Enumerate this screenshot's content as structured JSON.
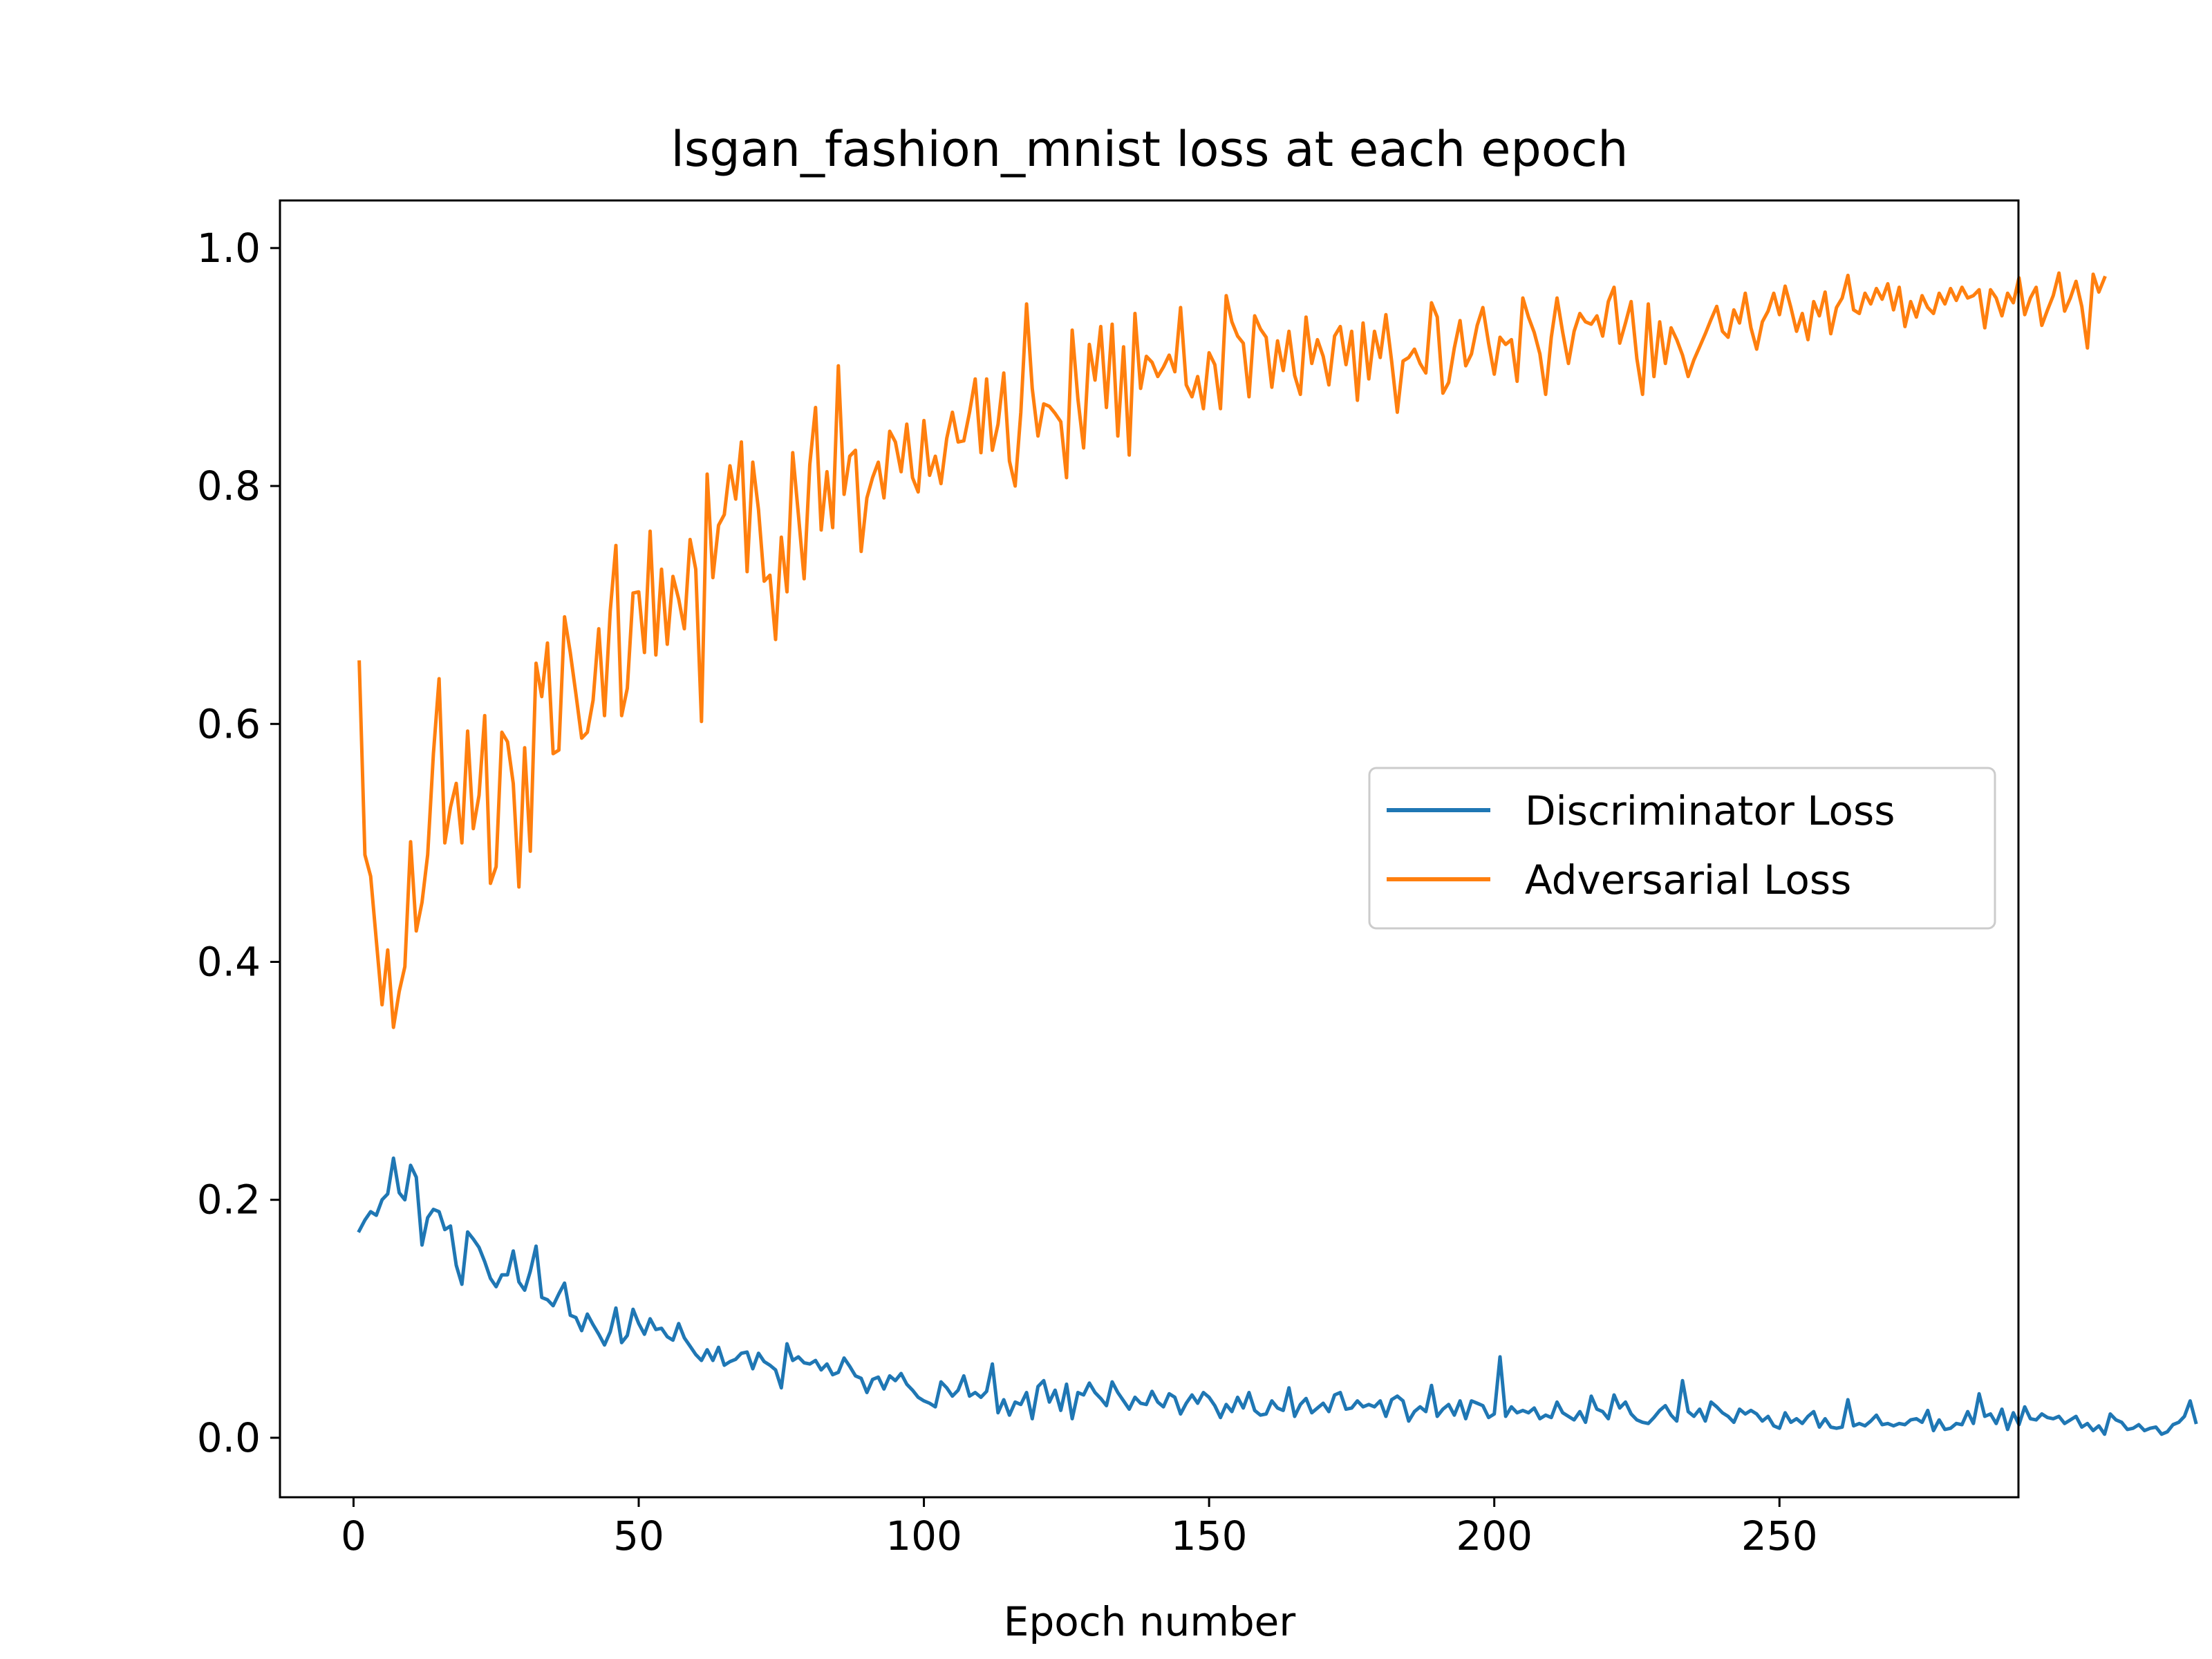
{
  "chart_data": {
    "type": "line",
    "title": "lsgan_fashion_mnist loss at each epoch",
    "xlabel": "Epoch number",
    "ylabel": "",
    "xlim": [
      -12.9,
      291.9
    ],
    "ylim": [
      -0.05,
      1.04
    ],
    "x_ticks": [
      0,
      50,
      100,
      150,
      200,
      250
    ],
    "y_ticks": [
      0.0,
      0.2,
      0.4,
      0.6,
      0.8,
      1.0
    ],
    "y_tick_labels": [
      "0.0",
      "0.2",
      "0.4",
      "0.6",
      "0.8",
      "1.0"
    ],
    "grid": false,
    "legend_position": "center-right",
    "x_start": 1,
    "series": [
      {
        "name": "Discriminator Loss",
        "color": "#1f77b4",
        "values": [
          0.174,
          0.183,
          0.19,
          0.187,
          0.2,
          0.205,
          0.235,
          0.206,
          0.2,
          0.229,
          0.219,
          0.162,
          0.185,
          0.192,
          0.19,
          0.175,
          0.178,
          0.145,
          0.129,
          0.173,
          0.167,
          0.16,
          0.148,
          0.134,
          0.127,
          0.137,
          0.137,
          0.157,
          0.131,
          0.124,
          0.14,
          0.161,
          0.118,
          0.116,
          0.111,
          0.121,
          0.13,
          0.103,
          0.101,
          0.09,
          0.104,
          0.095,
          0.087,
          0.078,
          0.089,
          0.109,
          0.08,
          0.086,
          0.108,
          0.096,
          0.087,
          0.1,
          0.091,
          0.092,
          0.085,
          0.082,
          0.096,
          0.084,
          0.077,
          0.07,
          0.065,
          0.074,
          0.065,
          0.076,
          0.061,
          0.064,
          0.066,
          0.071,
          0.072,
          0.058,
          0.071,
          0.064,
          0.061,
          0.057,
          0.042,
          0.079,
          0.065,
          0.068,
          0.063,
          0.062,
          0.065,
          0.057,
          0.062,
          0.053,
          0.055,
          0.067,
          0.06,
          0.052,
          0.05,
          0.038,
          0.049,
          0.051,
          0.041,
          0.052,
          0.048,
          0.054,
          0.045,
          0.04,
          0.034,
          0.031,
          0.029,
          0.026,
          0.047,
          0.042,
          0.035,
          0.04,
          0.052,
          0.035,
          0.038,
          0.034,
          0.039,
          0.062,
          0.021,
          0.032,
          0.019,
          0.03,
          0.028,
          0.038,
          0.016,
          0.043,
          0.048,
          0.03,
          0.04,
          0.023,
          0.045,
          0.016,
          0.038,
          0.036,
          0.046,
          0.038,
          0.033,
          0.027,
          0.047,
          0.038,
          0.031,
          0.024,
          0.034,
          0.029,
          0.028,
          0.039,
          0.03,
          0.026,
          0.037,
          0.034,
          0.02,
          0.029,
          0.036,
          0.029,
          0.038,
          0.034,
          0.027,
          0.017,
          0.028,
          0.022,
          0.034,
          0.025,
          0.038,
          0.023,
          0.019,
          0.02,
          0.031,
          0.025,
          0.023,
          0.042,
          0.018,
          0.028,
          0.033,
          0.021,
          0.025,
          0.029,
          0.022,
          0.036,
          0.038,
          0.024,
          0.025,
          0.031,
          0.026,
          0.028,
          0.026,
          0.031,
          0.018,
          0.032,
          0.035,
          0.031,
          0.014,
          0.022,
          0.026,
          0.022,
          0.044,
          0.018,
          0.024,
          0.028,
          0.019,
          0.031,
          0.016,
          0.031,
          0.029,
          0.027,
          0.017,
          0.02,
          0.068,
          0.018,
          0.026,
          0.021,
          0.023,
          0.021,
          0.025,
          0.016,
          0.019,
          0.017,
          0.03,
          0.021,
          0.018,
          0.015,
          0.022,
          0.013,
          0.035,
          0.024,
          0.022,
          0.016,
          0.036,
          0.025,
          0.03,
          0.02,
          0.015,
          0.013,
          0.012,
          0.017,
          0.023,
          0.027,
          0.019,
          0.014,
          0.048,
          0.022,
          0.018,
          0.024,
          0.014,
          0.03,
          0.026,
          0.021,
          0.018,
          0.013,
          0.024,
          0.02,
          0.023,
          0.02,
          0.014,
          0.018,
          0.01,
          0.008,
          0.021,
          0.013,
          0.016,
          0.012,
          0.018,
          0.022,
          0.009,
          0.016,
          0.009,
          0.008,
          0.009,
          0.032,
          0.01,
          0.012,
          0.01,
          0.014,
          0.019,
          0.011,
          0.012,
          0.01,
          0.012,
          0.011,
          0.015,
          0.016,
          0.013,
          0.023,
          0.006,
          0.015,
          0.007,
          0.008,
          0.012,
          0.011,
          0.022,
          0.012,
          0.037,
          0.018,
          0.02,
          0.012,
          0.024,
          0.007,
          0.021,
          0.011,
          0.026,
          0.016,
          0.015,
          0.02,
          0.017,
          0.016,
          0.018,
          0.012,
          0.015,
          0.018,
          0.009,
          0.012,
          0.006,
          0.01,
          0.003,
          0.02,
          0.015,
          0.013,
          0.007,
          0.008,
          0.011,
          0.006,
          0.008,
          0.009,
          0.003,
          0.005,
          0.011,
          0.013,
          0.018,
          0.031,
          0.013
        ]
      },
      {
        "name": "Adversarial Loss",
        "color": "#ff7f0e",
        "values": [
          0.652,
          0.49,
          0.472,
          0.418,
          0.364,
          0.41,
          0.345,
          0.375,
          0.396,
          0.501,
          0.426,
          0.45,
          0.49,
          0.575,
          0.638,
          0.5,
          0.53,
          0.55,
          0.5,
          0.594,
          0.512,
          0.54,
          0.607,
          0.466,
          0.48,
          0.593,
          0.585,
          0.55,
          0.463,
          0.58,
          0.493,
          0.651,
          0.623,
          0.668,
          0.575,
          0.578,
          0.69,
          0.66,
          0.625,
          0.588,
          0.593,
          0.62,
          0.68,
          0.607,
          0.695,
          0.75,
          0.607,
          0.63,
          0.71,
          0.711,
          0.66,
          0.762,
          0.658,
          0.73,
          0.667,
          0.724,
          0.705,
          0.68,
          0.755,
          0.73,
          0.602,
          0.81,
          0.723,
          0.767,
          0.776,
          0.817,
          0.789,
          0.837,
          0.728,
          0.82,
          0.78,
          0.72,
          0.725,
          0.671,
          0.757,
          0.711,
          0.828,
          0.776,
          0.722,
          0.818,
          0.866,
          0.763,
          0.812,
          0.765,
          0.901,
          0.793,
          0.825,
          0.83,
          0.745,
          0.79,
          0.807,
          0.82,
          0.79,
          0.846,
          0.837,
          0.812,
          0.852,
          0.807,
          0.795,
          0.855,
          0.809,
          0.825,
          0.802,
          0.84,
          0.862,
          0.837,
          0.838,
          0.862,
          0.89,
          0.828,
          0.89,
          0.83,
          0.852,
          0.895,
          0.821,
          0.8,
          0.862,
          0.953,
          0.882,
          0.842,
          0.869,
          0.867,
          0.861,
          0.854,
          0.807,
          0.931,
          0.873,
          0.832,
          0.919,
          0.889,
          0.934,
          0.866,
          0.936,
          0.842,
          0.917,
          0.826,
          0.945,
          0.882,
          0.909,
          0.904,
          0.892,
          0.9,
          0.91,
          0.896,
          0.95,
          0.885,
          0.875,
          0.892,
          0.865,
          0.912,
          0.902,
          0.865,
          0.96,
          0.938,
          0.926,
          0.92,
          0.875,
          0.943,
          0.932,
          0.925,
          0.883,
          0.922,
          0.897,
          0.93,
          0.893,
          0.877,
          0.942,
          0.903,
          0.923,
          0.909,
          0.885,
          0.926,
          0.934,
          0.902,
          0.93,
          0.872,
          0.937,
          0.89,
          0.93,
          0.908,
          0.944,
          0.905,
          0.862,
          0.905,
          0.908,
          0.915,
          0.903,
          0.895,
          0.954,
          0.942,
          0.878,
          0.887,
          0.916,
          0.939,
          0.901,
          0.911,
          0.935,
          0.95,
          0.92,
          0.894,
          0.925,
          0.919,
          0.923,
          0.888,
          0.958,
          0.942,
          0.929,
          0.911,
          0.877,
          0.925,
          0.958,
          0.929,
          0.903,
          0.93,
          0.945,
          0.938,
          0.936,
          0.943,
          0.926,
          0.955,
          0.967,
          0.92,
          0.937,
          0.955,
          0.907,
          0.877,
          0.953,
          0.892,
          0.938,
          0.903,
          0.933,
          0.923,
          0.91,
          0.892,
          0.906,
          0.917,
          0.928,
          0.94,
          0.951,
          0.93,
          0.925,
          0.948,
          0.937,
          0.962,
          0.933,
          0.915,
          0.938,
          0.947,
          0.962,
          0.944,
          0.968,
          0.95,
          0.93,
          0.945,
          0.923,
          0.955,
          0.943,
          0.963,
          0.928,
          0.95,
          0.958,
          0.977,
          0.948,
          0.945,
          0.962,
          0.953,
          0.966,
          0.957,
          0.97,
          0.948,
          0.967,
          0.934,
          0.955,
          0.942,
          0.96,
          0.95,
          0.945,
          0.962,
          0.953,
          0.966,
          0.956,
          0.967,
          0.958,
          0.96,
          0.965,
          0.933,
          0.965,
          0.958,
          0.943,
          0.962,
          0.954,
          0.975,
          0.944,
          0.958,
          0.967,
          0.935,
          0.948,
          0.96,
          0.979,
          0.947,
          0.958,
          0.972,
          0.951,
          0.916,
          0.978,
          0.963,
          0.975
        ]
      }
    ]
  }
}
